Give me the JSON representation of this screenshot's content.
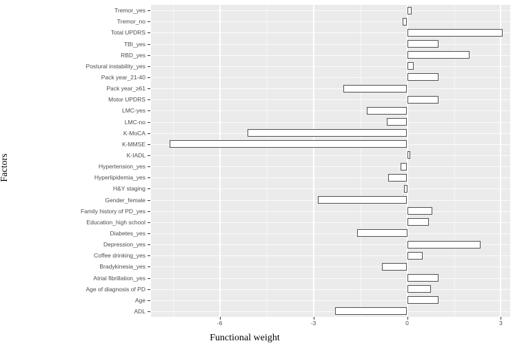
{
  "chart_data": {
    "type": "bar",
    "orientation": "horizontal",
    "title": "",
    "xlabel": "Functional weight",
    "ylabel": "Factors",
    "xlim": [
      -8.2,
      3.3
    ],
    "xticks": [
      -6,
      -3,
      0,
      3
    ],
    "xtick_labels": [
      "-6",
      "-3",
      "0",
      "3"
    ],
    "xticks_minor": [
      -7.5,
      -4.5,
      -1.5,
      1.5
    ],
    "grid": true,
    "legend": "none",
    "categories_top_to_bottom": [
      "Tremor_yes",
      "Tremor_no",
      "Total UPDRS",
      "TBI_yes",
      "RBD_yes",
      "Postural instability_yes",
      "Pack year_21-40",
      "Pack year_≥61",
      "Motor UPDRS",
      "LMC-yes",
      "LMC-no",
      "K-MoCA",
      "K-MMSE",
      "K-IADL",
      "Hypertension_yes",
      "Hyperlipidemia_yes",
      "H&Y staging",
      "Gender_female",
      "Family history of PD_yes",
      "Education_high school",
      "Diabetes_yes",
      "Depression_yes",
      "Coffee drinking_yes",
      "Bradykinesia_yes",
      "Atrial fibrillation_yes",
      "Age of diagnosis of PD",
      "Age",
      "ADL"
    ],
    "values": [
      0.15,
      -0.15,
      3.05,
      1.0,
      2.0,
      0.2,
      1.0,
      -2.05,
      1.0,
      -1.3,
      -0.65,
      -5.1,
      -7.6,
      0.1,
      -0.2,
      -0.6,
      -0.1,
      -2.85,
      0.8,
      0.7,
      -1.6,
      2.35,
      0.5,
      -0.8,
      1.0,
      0.75,
      1.0,
      -2.3
    ],
    "colors": {
      "panel_background": "#ebebeb",
      "grid": "#ffffff",
      "bar_fill": "#ffffff",
      "bar_border": "#4f4f4f",
      "axis_text": "#4d4d4d",
      "tick_mark": "#333333",
      "axis_title": "#000000"
    }
  }
}
